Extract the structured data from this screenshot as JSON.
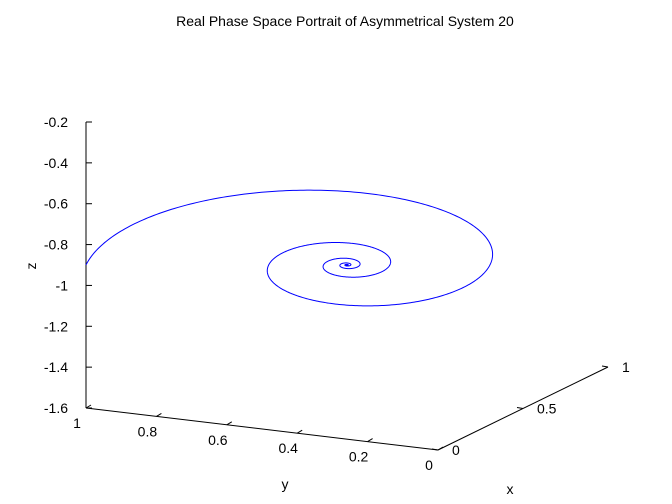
{
  "chart_data": {
    "type": "line",
    "projection": "3d",
    "title": "Real Phase Space Portrait of Asymmetrical System 20",
    "xlabel": "x",
    "ylabel": "y",
    "zlabel": "z",
    "xlim": [
      0,
      1
    ],
    "ylim": [
      0,
      1
    ],
    "zlim": [
      -1.6,
      -0.2
    ],
    "xticks": [
      {
        "value": 0,
        "label": "0"
      },
      {
        "value": 0.5,
        "label": "0.5"
      },
      {
        "value": 1,
        "label": "1"
      }
    ],
    "yticks": [
      {
        "value": 0,
        "label": "0"
      },
      {
        "value": 0.2,
        "label": "0.2"
      },
      {
        "value": 0.4,
        "label": "0.4"
      },
      {
        "value": 0.6,
        "label": "0.6"
      },
      {
        "value": 0.8,
        "label": "0.8"
      },
      {
        "value": 1,
        "label": "1"
      }
    ],
    "zticks": [
      {
        "value": -0.2,
        "label": "-0.2"
      },
      {
        "value": -0.4,
        "label": "-0.4"
      },
      {
        "value": -0.6,
        "label": "-0.6"
      },
      {
        "value": -0.8,
        "label": "-0.8"
      },
      {
        "value": -1,
        "label": "-1"
      },
      {
        "value": -1.2,
        "label": "-1.2"
      },
      {
        "value": -1.4,
        "label": "-1.4"
      },
      {
        "value": -1.6,
        "label": "-1.6"
      }
    ],
    "grid": false,
    "series": [
      {
        "color": "#0000ff",
        "trajectory": {
          "start": [
            0,
            1,
            -1
          ],
          "equilibrium": [
            0.5,
            0.5,
            -1
          ],
          "start_angle_deg": 180,
          "decay_per_turn": 0.3,
          "turns": 7
        }
      }
    ]
  }
}
